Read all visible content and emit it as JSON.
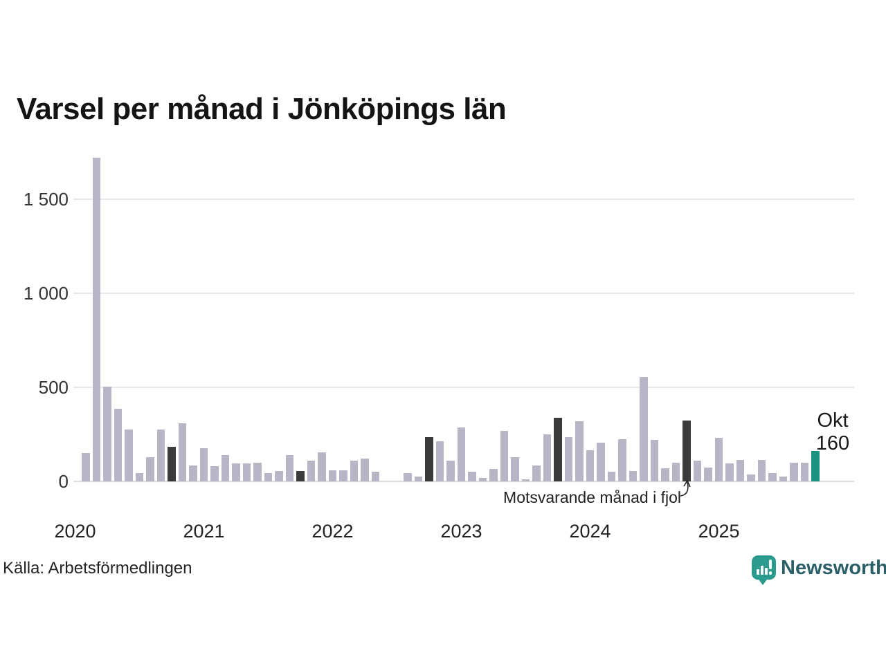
{
  "header": {
    "title": "Varsel per månad i Jönköpings län"
  },
  "annotation": {
    "label": "Motsvarande månad i fjol",
    "target_month": "2024-10"
  },
  "current_point": {
    "month_label": "Okt",
    "value_label": "160"
  },
  "footer": {
    "source": "Källa: Arbetsförmedlingen",
    "brand": "Newsworthy"
  },
  "colors": {
    "bar": "#b9b5c6",
    "previous_year_month_bar": "#3b3b3b",
    "current_month_bar": "#189481",
    "gridline": "#e8e7ee",
    "brand_icon": "#2a9b8d",
    "brand_text": "#2a5f68"
  },
  "chart_data": {
    "type": "bar",
    "title": "Varsel per månad i Jönköpings län",
    "xlabel": "",
    "ylabel": "",
    "grid": "horizontal",
    "legend": "none",
    "ylim": [
      0,
      1760
    ],
    "yticks": [
      0,
      500,
      1000,
      1500
    ],
    "ytick_labels": [
      "0",
      "500",
      "1 000",
      "1 500"
    ],
    "year_labels": [
      "2020",
      "2021",
      "2022",
      "2023",
      "2024",
      "2025"
    ],
    "months": [
      "2020-02",
      "2020-03",
      "2020-04",
      "2020-05",
      "2020-06",
      "2020-07",
      "2020-08",
      "2020-09",
      "2020-10",
      "2020-11",
      "2020-12",
      "2021-01",
      "2021-02",
      "2021-03",
      "2021-04",
      "2021-05",
      "2021-06",
      "2021-07",
      "2021-08",
      "2021-09",
      "2021-10",
      "2021-11",
      "2021-12",
      "2022-01",
      "2022-02",
      "2022-03",
      "2022-04",
      "2022-05",
      "2022-06",
      "2022-07",
      "2022-08",
      "2022-09",
      "2022-10",
      "2022-11",
      "2022-12",
      "2023-01",
      "2023-02",
      "2023-03",
      "2023-04",
      "2023-05",
      "2023-06",
      "2023-07",
      "2023-08",
      "2023-09",
      "2023-10",
      "2023-11",
      "2023-12",
      "2024-01",
      "2024-02",
      "2024-03",
      "2024-04",
      "2024-05",
      "2024-06",
      "2024-07",
      "2024-08",
      "2024-09",
      "2024-10",
      "2024-11",
      "2024-12",
      "2025-01",
      "2025-02",
      "2025-03",
      "2025-04",
      "2025-05",
      "2025-06",
      "2025-07",
      "2025-08",
      "2025-09",
      "2025-10"
    ],
    "values": [
      150,
      1720,
      505,
      385,
      275,
      45,
      130,
      275,
      185,
      310,
      85,
      175,
      80,
      140,
      95,
      95,
      100,
      45,
      55,
      140,
      55,
      110,
      155,
      60,
      60,
      110,
      120,
      50,
      0,
      0,
      45,
      25,
      235,
      215,
      110,
      285,
      50,
      20,
      65,
      270,
      130,
      10,
      85,
      250,
      340,
      235,
      320,
      165,
      205,
      50,
      225,
      55,
      555,
      220,
      70,
      100,
      325,
      110,
      75,
      230,
      95,
      115,
      35,
      115,
      45,
      25,
      100,
      100,
      160
    ],
    "dark_months": [
      "2020-10",
      "2021-10",
      "2022-10",
      "2023-10",
      "2024-10"
    ],
    "current_month": "2025-10",
    "current_month_value": 160
  }
}
